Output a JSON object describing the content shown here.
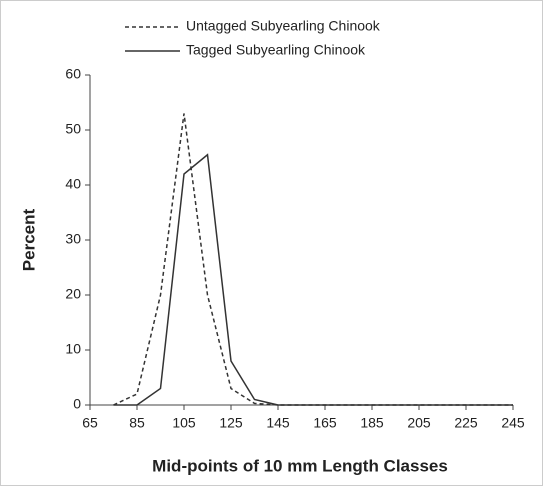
{
  "chart_data": {
    "type": "line",
    "x_label": "Mid-points of 10 mm Length Classes",
    "y_label": "Percent",
    "x": [
      75,
      85,
      95,
      105,
      115,
      125,
      135,
      145,
      155,
      165,
      175,
      185,
      195,
      205,
      215,
      225,
      235,
      245
    ],
    "series": [
      {
        "name": "Untagged Subyearling Chinook",
        "color": "#333333",
        "style": "dashed",
        "values": [
          0,
          2,
          20,
          53,
          20,
          3,
          0.3,
          0,
          0,
          0,
          0,
          0,
          0,
          0,
          0,
          0,
          0,
          0
        ]
      },
      {
        "name": "Tagged Subyearling Chinook",
        "color": "#333333",
        "style": "solid",
        "values": [
          0,
          0,
          3,
          42,
          45.5,
          8,
          1,
          0,
          0,
          0,
          0,
          0,
          0,
          0,
          0,
          0,
          0,
          0
        ]
      }
    ],
    "xlim": [
      65,
      245
    ],
    "xticks": [
      65,
      85,
      105,
      125,
      145,
      165,
      185,
      205,
      225,
      245
    ],
    "ylim": [
      0,
      60
    ],
    "yticks": [
      0,
      10,
      20,
      30,
      40,
      50,
      60
    ],
    "legend": "top"
  }
}
